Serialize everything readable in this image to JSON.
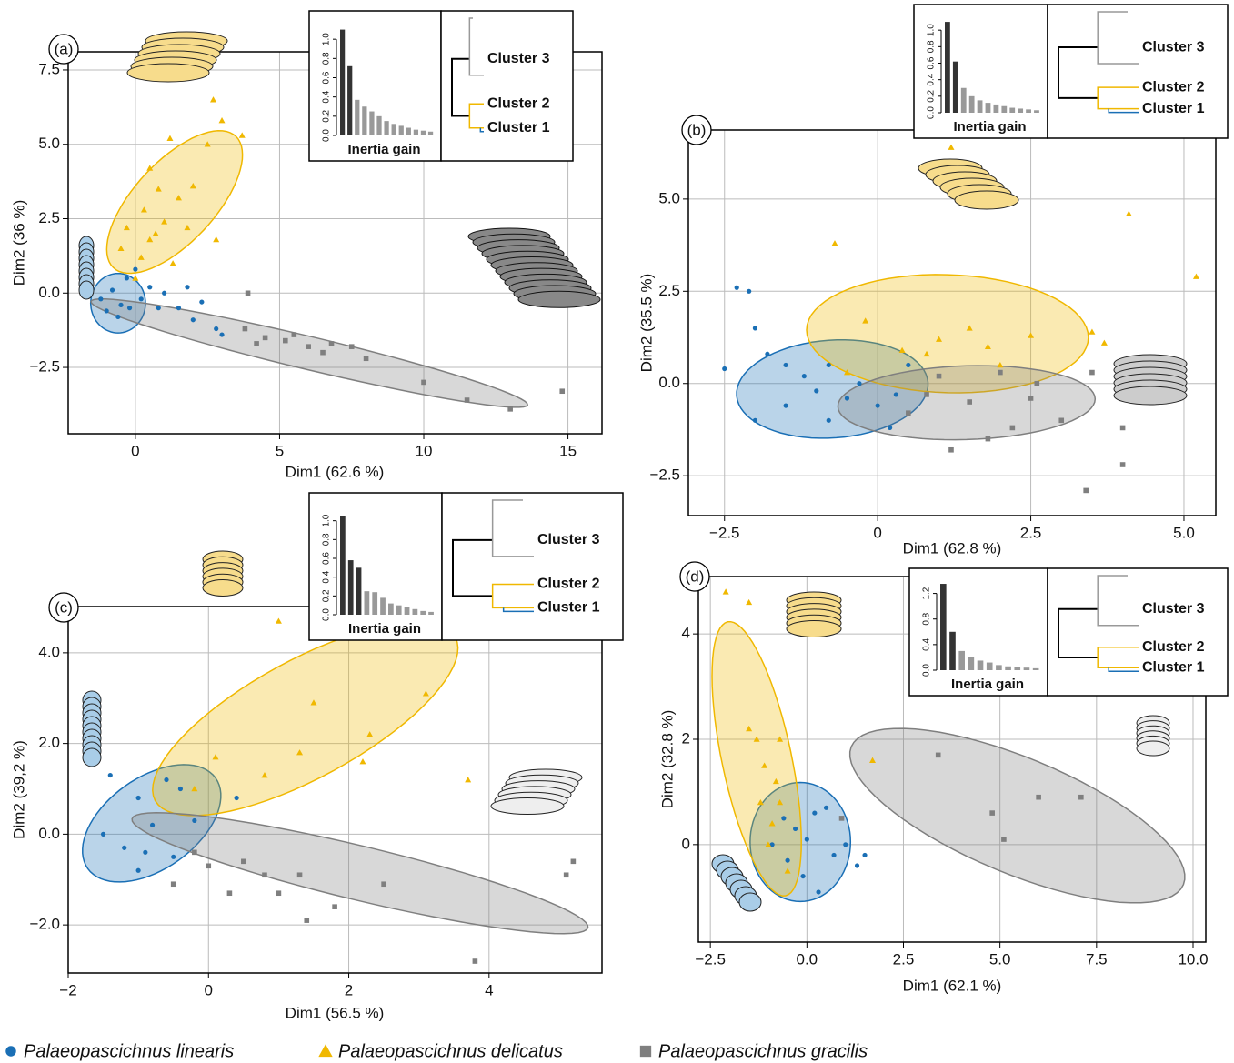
{
  "chart_data": [
    {
      "type": "scatter",
      "panel": "(a)",
      "xlabel": "Dim1 (62.6 %)",
      "ylabel": "Dim2 (36 %)",
      "xlim": [
        -2.33,
        16.18
      ],
      "ylim": [
        -4.73,
        8.11
      ],
      "xticks": [
        0,
        5,
        10,
        15
      ],
      "yticks": [
        7.5,
        {
          "value": 5,
          "label": "5.0"
        },
        2.5,
        {
          "value": 0,
          "label": "0.0"
        },
        {
          "value": -2.5,
          "label": "−2.5"
        }
      ],
      "grid": true,
      "series": [
        {
          "marker": "circle",
          "color": "#1a6fb5",
          "x": [
            -1.2,
            -0.8,
            -0.5,
            -0.2,
            -1.0,
            0.2,
            0.5,
            1.0,
            1.5,
            2.0,
            2.8,
            3.0,
            -0.3,
            0.0,
            -0.6,
            0.8,
            1.8,
            2.3
          ],
          "y": [
            -0.2,
            0.1,
            -0.4,
            -0.5,
            -0.6,
            -0.2,
            0.2,
            0.0,
            -0.5,
            -0.9,
            -1.2,
            -1.4,
            0.5,
            0.8,
            -0.8,
            -0.5,
            0.2,
            -0.3
          ],
          "ellipse": {
            "center": [
              -0.6,
              -0.34
            ],
            "axis1": [
              0.95,
              0
            ],
            "axis2": [
              0,
              1.0
            ]
          }
        },
        {
          "marker": "triangle",
          "color": "#f0b800",
          "x": [
            0.5,
            1.2,
            2.5,
            3.0,
            3.7,
            0.8,
            1.5,
            2.0,
            0.3,
            1.0,
            1.8,
            0.5,
            -0.5,
            0.2,
            2.8,
            1.3,
            0.0,
            2.7,
            -0.3,
            0.7
          ],
          "y": [
            4.2,
            5.2,
            5.0,
            5.8,
            5.3,
            3.5,
            3.2,
            3.6,
            2.8,
            2.4,
            2.2,
            1.8,
            1.5,
            1.2,
            1.8,
            1.0,
            0.5,
            6.5,
            2.2,
            2.0
          ],
          "ellipse": {
            "center": [
              1.36,
              3.06
            ],
            "axis1": [
              2.13,
              2.2
            ],
            "axis2": [
              1.0,
              -0.95
            ]
          }
        },
        {
          "marker": "square",
          "color": "#7f7f7f",
          "x": [
            3.8,
            4.5,
            5.2,
            6.0,
            5.5,
            6.5,
            7.5,
            8.0,
            10.0,
            11.5,
            13.0,
            14.8,
            3.9,
            4.2,
            6.8
          ],
          "y": [
            -1.2,
            -1.5,
            -1.6,
            -1.8,
            -1.4,
            -2.0,
            -1.8,
            -2.2,
            -3.0,
            -3.6,
            -3.9,
            -3.3,
            0.0,
            -1.7,
            -1.7
          ],
          "ellipse": {
            "center": [
              6.03,
              -2.02
            ],
            "axis1": [
              7.57,
              -1.74
            ],
            "axis2": [
              -0.13,
              -0.54
            ]
          }
        }
      ],
      "inset": {
        "type": "bar",
        "title": "Inertia gain",
        "values": [
          1.1,
          0.72,
          0.37,
          0.3,
          0.25,
          0.2,
          0.15,
          0.12,
          0.1,
          0.08,
          0.06,
          0.05,
          0.04
        ],
        "colors": [
          "#333",
          "#333",
          "#999",
          "#999",
          "#999",
          "#999",
          "#999",
          "#999",
          "#999",
          "#999",
          "#999",
          "#999",
          "#999"
        ],
        "ylim": [
          0,
          1.2
        ],
        "yticks": [
          {
            "value": 0,
            "label": "0.0"
          },
          0.2,
          0.4,
          0.6,
          0.8,
          {
            "value": 1,
            "label": "1.0"
          }
        ],
        "clusters": [
          {
            "name": "Cluster 3",
            "color": "#999999"
          },
          {
            "name": "Cluster 2",
            "color": "#f0b800"
          },
          {
            "name": "Cluster 1",
            "color": "#1a6fb5"
          }
        ]
      }
    },
    {
      "type": "scatter",
      "panel": "(b)",
      "xlabel": "Dim1 (62.8 %)",
      "ylabel": "Dim2 (35.5 %)",
      "xlim": [
        -3.09,
        5.52
      ],
      "ylim": [
        -3.58,
        6.87
      ],
      "xticks": [
        {
          "value": -2.5,
          "label": "−2.5"
        },
        0,
        2.5,
        {
          "value": 5,
          "label": "5.0"
        }
      ],
      "yticks": [
        {
          "value": 5,
          "label": "5.0"
        },
        2.5,
        {
          "value": 0,
          "label": "0.0"
        },
        {
          "value": -2.5,
          "label": "−2.5"
        }
      ],
      "grid": true,
      "series": [
        {
          "marker": "circle",
          "color": "#1a6fb5",
          "x": [
            -2.3,
            -2.1,
            -2.0,
            -1.8,
            -1.5,
            -1.2,
            -1.0,
            -0.8,
            -0.5,
            -0.3,
            0.0,
            0.3,
            -1.5,
            -2.0,
            -2.5,
            -0.8,
            0.5,
            0.2
          ],
          "y": [
            2.6,
            2.5,
            1.5,
            0.8,
            0.5,
            0.2,
            -0.2,
            0.5,
            -0.4,
            0.0,
            -0.6,
            -0.3,
            -0.6,
            -1.0,
            0.4,
            -1.0,
            0.5,
            -1.2
          ],
          "ellipse": {
            "center": [
              -0.74,
              -0.15
            ],
            "axis1": [
              1.55,
              0.3
            ],
            "axis2": [
              -0.2,
              1.3
            ]
          }
        },
        {
          "marker": "triangle",
          "color": "#f0b800",
          "x": [
            -0.7,
            1.5,
            1.0,
            0.8,
            1.8,
            2.5,
            3.5,
            3.7,
            5.2,
            4.1,
            1.2,
            -0.2,
            0.4,
            2.0,
            -0.5
          ],
          "y": [
            3.8,
            1.5,
            1.2,
            0.8,
            1.0,
            1.3,
            1.4,
            1.1,
            2.9,
            4.6,
            6.4,
            1.7,
            0.9,
            0.5,
            0.3
          ],
          "ellipse": {
            "center": [
              1.14,
              1.35
            ],
            "axis1": [
              2.3,
              -0.1
            ],
            "axis2": [
              0,
              1.6
            ]
          }
        },
        {
          "marker": "square",
          "color": "#7f7f7f",
          "x": [
            0.5,
            1.0,
            1.5,
            2.0,
            2.5,
            3.0,
            1.8,
            2.2,
            3.5,
            4.0,
            1.2,
            3.4,
            4.0,
            0.8,
            2.6
          ],
          "y": [
            -0.8,
            0.2,
            -0.5,
            0.3,
            -0.4,
            -1.0,
            -1.5,
            -1.2,
            0.3,
            -1.2,
            -1.8,
            -2.9,
            -2.2,
            -0.3,
            0.0
          ],
          "ellipse": {
            "center": [
              1.45,
              -0.52
            ],
            "axis1": [
              2.1,
              0.1
            ],
            "axis2": [
              0,
              1.0
            ]
          }
        }
      ],
      "inset": {
        "type": "bar",
        "title": "Inertia gain",
        "values": [
          1.1,
          0.62,
          0.3,
          0.2,
          0.15,
          0.12,
          0.1,
          0.08,
          0.06,
          0.05,
          0.04,
          0.03
        ],
        "colors": [
          "#333",
          "#333",
          "#999",
          "#999",
          "#999",
          "#999",
          "#999",
          "#999",
          "#999",
          "#999",
          "#999",
          "#999"
        ],
        "ylim": [
          0,
          1.2
        ],
        "yticks": [
          {
            "value": 0,
            "label": "0.0"
          },
          0.2,
          0.4,
          0.6,
          0.8,
          {
            "value": 1,
            "label": "1.0"
          }
        ],
        "clusters": [
          {
            "name": "Cluster 3",
            "color": "#999999"
          },
          {
            "name": "Cluster 2",
            "color": "#f0b800"
          },
          {
            "name": "Cluster 1",
            "color": "#1a6fb5"
          }
        ]
      }
    },
    {
      "type": "scatter",
      "panel": "(c)",
      "xlabel": "Dim1 (56.5 %)",
      "ylabel": "Dim2 (39,2 %)",
      "xlim": [
        -2,
        5.61
      ],
      "ylim": [
        -3.06,
        5.02
      ],
      "xticks": [
        {
          "value": -2,
          "label": "−2"
        },
        0,
        2,
        4
      ],
      "yticks": [
        {
          "value": 4,
          "label": "4.0"
        },
        {
          "value": 2,
          "label": "2.0"
        },
        {
          "value": 0,
          "label": "0.0"
        },
        {
          "value": -2,
          "label": "−2.0"
        }
      ],
      "grid": true,
      "series": [
        {
          "marker": "circle",
          "color": "#1a6fb5",
          "x": [
            -1.4,
            -1.0,
            -0.6,
            -0.4,
            -0.8,
            -1.2,
            -1.0,
            -0.5,
            -0.2,
            -1.5,
            0.4,
            -0.9
          ],
          "y": [
            1.3,
            0.8,
            1.2,
            1.0,
            0.2,
            -0.3,
            -0.8,
            -0.5,
            0.3,
            0.0,
            0.8,
            -0.4
          ],
          "ellipse": {
            "center": [
              -0.81,
              0.24
            ],
            "axis1": [
              0.91,
              1.0
            ],
            "axis2": [
              0.38,
              -0.82
            ]
          }
        },
        {
          "marker": "triangle",
          "color": "#f0b800",
          "x": [
            1.0,
            3.1,
            1.5,
            2.3,
            2.2,
            0.8,
            1.3,
            3.7,
            0.1,
            -0.2
          ],
          "y": [
            4.7,
            3.1,
            2.9,
            2.2,
            1.6,
            1.3,
            1.8,
            1.2,
            1.7,
            1.0
          ],
          "ellipse": {
            "center": [
              1.38,
              2.54
            ],
            "axis1": [
              2.14,
              1.8
            ],
            "axis2": [
              0.4,
              -1.14
            ]
          }
        },
        {
          "marker": "square",
          "color": "#7f7f7f",
          "x": [
            -0.5,
            0.0,
            0.5,
            0.8,
            1.0,
            1.4,
            1.8,
            2.5,
            3.8,
            5.1,
            5.2,
            0.3,
            1.3,
            -0.2
          ],
          "y": [
            -1.1,
            -0.7,
            -0.6,
            -0.9,
            -1.3,
            -1.9,
            -1.6,
            -1.1,
            -2.8,
            -0.9,
            -0.6,
            -1.3,
            -0.9,
            -0.4
          ],
          "ellipse": {
            "center": [
              2.16,
              -0.86
            ],
            "axis1": [
              3.25,
              -1.2
            ],
            "axis2": [
              -0.09,
              -0.58
            ]
          }
        }
      ],
      "inset": {
        "type": "bar",
        "title": "Inertia gain",
        "values": [
          1.05,
          0.58,
          0.5,
          0.25,
          0.24,
          0.18,
          0.12,
          0.1,
          0.08,
          0.06,
          0.04,
          0.03
        ],
        "colors": [
          "#333",
          "#333",
          "#333",
          "#999",
          "#999",
          "#999",
          "#999",
          "#999",
          "#999",
          "#999",
          "#999",
          "#999"
        ],
        "ylim": [
          0,
          1.2
        ],
        "yticks": [
          {
            "value": 0,
            "label": "0.0"
          },
          0.2,
          0.4,
          0.6,
          0.8,
          {
            "value": 1,
            "label": "1.0"
          }
        ],
        "clusters": [
          {
            "name": "Cluster 3",
            "color": "#999999"
          },
          {
            "name": "Cluster 2",
            "color": "#f0b800"
          },
          {
            "name": "Cluster 1",
            "color": "#1a6fb5"
          }
        ]
      }
    },
    {
      "type": "scatter",
      "panel": "(d)",
      "xlabel": "Dim1 (62.1 %)",
      "ylabel": "Dim2 (32.8 %)",
      "xlim": [
        -2.81,
        10.33
      ],
      "ylim": [
        -1.85,
        5.09
      ],
      "xticks": [
        {
          "value": -2.5,
          "label": "−2.5"
        },
        {
          "value": 0,
          "label": "0.0"
        },
        2.5,
        {
          "value": 5,
          "label": "5.0"
        },
        7.5,
        {
          "value": 10,
          "label": "10.0"
        }
      ],
      "yticks": [
        4,
        2,
        0
      ],
      "grid": true,
      "series": [
        {
          "marker": "circle",
          "color": "#1a6fb5",
          "x": [
            -0.6,
            -0.3,
            0.0,
            0.2,
            0.5,
            -0.5,
            -0.1,
            0.3,
            0.7,
            1.0,
            1.5,
            1.3,
            -0.9
          ],
          "y": [
            0.5,
            0.3,
            0.1,
            0.6,
            0.7,
            -0.3,
            -0.6,
            -0.9,
            -0.2,
            0.0,
            -0.2,
            -0.4,
            0.0
          ],
          "ellipse": {
            "center": [
              -0.17,
              0.05
            ],
            "axis1": [
              1.3,
              0
            ],
            "axis2": [
              0,
              1.13
            ]
          }
        },
        {
          "marker": "triangle",
          "color": "#f0b800",
          "x": [
            -2.1,
            -1.5,
            -1.5,
            -1.3,
            -0.7,
            -1.1,
            -0.8,
            -1.2,
            -0.7,
            -0.9,
            -1.0,
            1.7,
            -0.5
          ],
          "y": [
            4.8,
            4.6,
            2.2,
            2.0,
            2.0,
            1.5,
            1.2,
            0.8,
            0.8,
            0.4,
            0.0,
            1.6,
            -0.5
          ],
          "ellipse": {
            "center": [
              -1.3,
              1.63
            ],
            "axis1": [
              -0.75,
              2.6
            ],
            "axis2": [
              0.88,
              0.14
            ]
          }
        },
        {
          "marker": "square",
          "color": "#7f7f7f",
          "x": [
            3.4,
            4.8,
            5.1,
            6.0,
            7.1,
            0.9
          ],
          "y": [
            1.7,
            0.6,
            0.1,
            0.9,
            0.9,
            0.5
          ],
          "ellipse": {
            "center": [
              5.45,
              0.55
            ],
            "axis1": [
              4.3,
              -1.0
            ],
            "axis2": [
              0.57,
              -1.32
            ]
          }
        }
      ],
      "inset": {
        "type": "bar",
        "title": "Inertia gain",
        "values": [
          1.35,
          0.6,
          0.3,
          0.2,
          0.15,
          0.12,
          0.08,
          0.06,
          0.05,
          0.04,
          0.03
        ],
        "colors": [
          "#333",
          "#333",
          "#999",
          "#999",
          "#999",
          "#999",
          "#999",
          "#999",
          "#999",
          "#999",
          "#999"
        ],
        "ylim": [
          0,
          1.45
        ],
        "yticks": [
          {
            "value": 0,
            "label": "0.0"
          },
          0.4,
          0.8,
          1.2
        ],
        "clusters": [
          {
            "name": "Cluster 3",
            "color": "#999999"
          },
          {
            "name": "Cluster 2",
            "color": "#f0b800"
          },
          {
            "name": "Cluster 1",
            "color": "#1a6fb5"
          }
        ]
      }
    }
  ],
  "legend": [
    {
      "name": "Palaeopascichnus linearis",
      "color": "#1a6fb5",
      "marker": "circle"
    },
    {
      "name": "Palaeopascichnus delicatus",
      "color": "#f0b800",
      "marker": "triangle"
    },
    {
      "name": "Palaeopascichnus gracilis",
      "color": "#7f7f7f",
      "marker": "square"
    }
  ]
}
